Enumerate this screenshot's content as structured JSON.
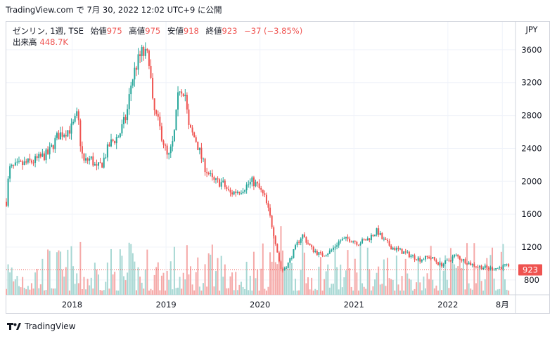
{
  "header": {
    "publish_line": "TradingView.com で 7月 30, 2022 12:02 UTC+9 に公開"
  },
  "legend": {
    "symbol": "ゼンリン, 1週, TSE",
    "open_label": "始値",
    "open": "975",
    "high_label": "高値",
    "high": "975",
    "low_label": "安値",
    "low": "918",
    "close_label": "終値",
    "close": "923",
    "change": "−37 (−3.85%)",
    "volume_label": "出来高",
    "volume": "448.7K"
  },
  "footer": {
    "brand": "TradingView"
  },
  "colors": {
    "up": "#26a69a",
    "down": "#ef5350",
    "up_volume": "#a8d8d4",
    "down_volume": "#f5a9a8",
    "grid": "#f0f3fa",
    "text": "#131722"
  },
  "chart_data": {
    "type": "candlestick",
    "currency": "JPY",
    "y_ticks": [
      800,
      1200,
      1600,
      2000,
      2400,
      2800,
      3200,
      3600
    ],
    "ylim": [
      620,
      3940
    ],
    "x_ticks": [
      "2018",
      "2019",
      "2020",
      "2021",
      "2022",
      "8月"
    ],
    "x_range": [
      2017.3,
      2022.72
    ],
    "last_price": 923,
    "last_price_label": "923",
    "keypoints": [
      {
        "date": 2017.3,
        "price": 1750
      },
      {
        "date": 2017.33,
        "price": 2150
      },
      {
        "date": 2017.45,
        "price": 2200
      },
      {
        "date": 2017.6,
        "price": 2250
      },
      {
        "date": 2017.75,
        "price": 2340
      },
      {
        "date": 2017.85,
        "price": 2560
      },
      {
        "date": 2018.0,
        "price": 2650
      },
      {
        "date": 2018.06,
        "price": 2820
      },
      {
        "date": 2018.09,
        "price": 2450
      },
      {
        "date": 2018.12,
        "price": 2230
      },
      {
        "date": 2018.2,
        "price": 2280
      },
      {
        "date": 2018.26,
        "price": 2150
      },
      {
        "date": 2018.32,
        "price": 2220
      },
      {
        "date": 2018.4,
        "price": 2450
      },
      {
        "date": 2018.5,
        "price": 2560
      },
      {
        "date": 2018.52,
        "price": 2620
      },
      {
        "date": 2018.58,
        "price": 2800
      },
      {
        "date": 2018.63,
        "price": 3200
      },
      {
        "date": 2018.68,
        "price": 3400
      },
      {
        "date": 2018.74,
        "price": 3560
      },
      {
        "date": 2018.82,
        "price": 3500
      },
      {
        "date": 2018.86,
        "price": 2900
      },
      {
        "date": 2018.92,
        "price": 2700
      },
      {
        "date": 2018.98,
        "price": 2450
      },
      {
        "date": 2019.02,
        "price": 2260
      },
      {
        "date": 2019.08,
        "price": 2500
      },
      {
        "date": 2019.14,
        "price": 3150
      },
      {
        "date": 2019.2,
        "price": 3100
      },
      {
        "date": 2019.24,
        "price": 2650
      },
      {
        "date": 2019.32,
        "price": 2500
      },
      {
        "date": 2019.4,
        "price": 2200
      },
      {
        "date": 2019.5,
        "price": 2000
      },
      {
        "date": 2019.6,
        "price": 1980
      },
      {
        "date": 2019.68,
        "price": 1850
      },
      {
        "date": 2019.8,
        "price": 1900
      },
      {
        "date": 2019.92,
        "price": 2000
      },
      {
        "date": 2019.97,
        "price": 1950
      },
      {
        "date": 2020.05,
        "price": 1800
      },
      {
        "date": 2020.1,
        "price": 1600
      },
      {
        "date": 2020.16,
        "price": 1300
      },
      {
        "date": 2020.2,
        "price": 1050
      },
      {
        "date": 2020.23,
        "price": 900
      },
      {
        "date": 2020.3,
        "price": 1000
      },
      {
        "date": 2020.4,
        "price": 1250
      },
      {
        "date": 2020.45,
        "price": 1350
      },
      {
        "date": 2020.55,
        "price": 1180
      },
      {
        "date": 2020.65,
        "price": 1100
      },
      {
        "date": 2020.75,
        "price": 1150
      },
      {
        "date": 2020.85,
        "price": 1280
      },
      {
        "date": 2020.95,
        "price": 1300
      },
      {
        "date": 2021.05,
        "price": 1250
      },
      {
        "date": 2021.15,
        "price": 1300
      },
      {
        "date": 2021.25,
        "price": 1400
      },
      {
        "date": 2021.3,
        "price": 1300
      },
      {
        "date": 2021.35,
        "price": 1250
      },
      {
        "date": 2021.4,
        "price": 1200
      },
      {
        "date": 2021.5,
        "price": 1150
      },
      {
        "date": 2021.6,
        "price": 1100
      },
      {
        "date": 2021.7,
        "price": 1050
      },
      {
        "date": 2021.8,
        "price": 1080
      },
      {
        "date": 2021.85,
        "price": 1050
      },
      {
        "date": 2021.92,
        "price": 980
      },
      {
        "date": 2022.0,
        "price": 1030
      },
      {
        "date": 2022.08,
        "price": 1100
      },
      {
        "date": 2022.15,
        "price": 1050
      },
      {
        "date": 2022.25,
        "price": 990
      },
      {
        "date": 2022.35,
        "price": 960
      },
      {
        "date": 2022.45,
        "price": 940
      },
      {
        "date": 2022.55,
        "price": 950
      },
      {
        "date": 2022.62,
        "price": 975
      },
      {
        "date": 2022.66,
        "price": 923
      }
    ]
  }
}
